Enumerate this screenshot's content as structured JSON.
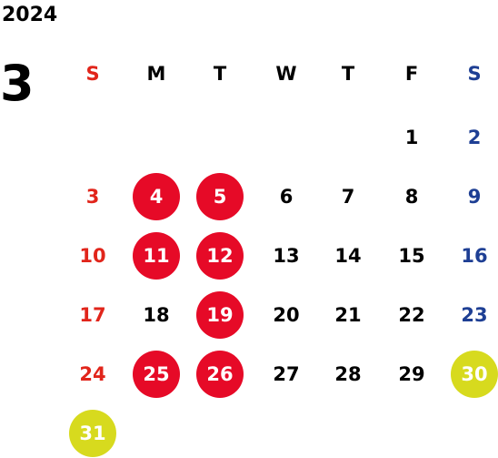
{
  "calendar": {
    "year": "2024",
    "month": "3",
    "weekdays": [
      "S",
      "M",
      "T",
      "W",
      "T",
      "F",
      "S"
    ],
    "colors": {
      "sunday": "#e1251b",
      "saturday": "#1e3f94",
      "weekday": "#000000",
      "highlight_red": "#e60a27",
      "highlight_yellow": "#d7da1e"
    },
    "weeks": [
      [
        null,
        null,
        null,
        null,
        null,
        {
          "d": "1"
        },
        {
          "d": "2"
        }
      ],
      [
        {
          "d": "3"
        },
        {
          "d": "4",
          "mark": "red"
        },
        {
          "d": "5",
          "mark": "red"
        },
        {
          "d": "6"
        },
        {
          "d": "7"
        },
        {
          "d": "8"
        },
        {
          "d": "9"
        }
      ],
      [
        {
          "d": "10"
        },
        {
          "d": "11",
          "mark": "red"
        },
        {
          "d": "12",
          "mark": "red"
        },
        {
          "d": "13"
        },
        {
          "d": "14"
        },
        {
          "d": "15"
        },
        {
          "d": "16"
        }
      ],
      [
        {
          "d": "17"
        },
        {
          "d": "18"
        },
        {
          "d": "19",
          "mark": "red"
        },
        {
          "d": "20"
        },
        {
          "d": "21"
        },
        {
          "d": "22"
        },
        {
          "d": "23"
        }
      ],
      [
        {
          "d": "24"
        },
        {
          "d": "25",
          "mark": "red"
        },
        {
          "d": "26",
          "mark": "red"
        },
        {
          "d": "27"
        },
        {
          "d": "28"
        },
        {
          "d": "29"
        },
        {
          "d": "30",
          "mark": "yellow"
        }
      ],
      [
        {
          "d": "31",
          "mark": "yellow"
        },
        null,
        null,
        null,
        null,
        null,
        null
      ]
    ]
  }
}
